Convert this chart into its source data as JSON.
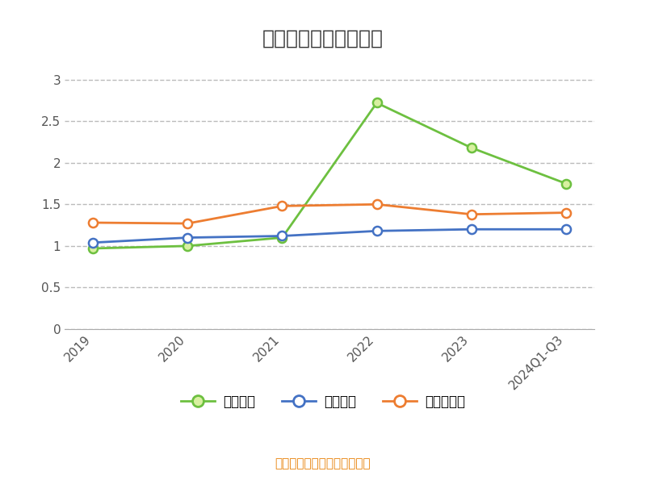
{
  "title": "历年速动比率变化情况",
  "footer": "制图数据来自恒生聚源数据库",
  "x_labels": [
    "2019",
    "2020",
    "2021",
    "2022",
    "2023",
    "2024Q1-Q3"
  ],
  "series": [
    {
      "name": "速动比率",
      "values": [
        0.97,
        1.0,
        1.1,
        2.72,
        2.18,
        1.75
      ],
      "color": "#6DC040",
      "marker": "o",
      "marker_facecolor": "#D8F0A0",
      "marker_edgecolor": "#6DC040",
      "linewidth": 2.0
    },
    {
      "name": "行业均值",
      "values": [
        1.04,
        1.1,
        1.12,
        1.18,
        1.2,
        1.2
      ],
      "color": "#4472C4",
      "marker": "o",
      "marker_facecolor": "#FFFFFF",
      "marker_edgecolor": "#4472C4",
      "linewidth": 2.0
    },
    {
      "name": "行业中位数",
      "values": [
        1.28,
        1.27,
        1.48,
        1.5,
        1.38,
        1.4
      ],
      "color": "#ED7D31",
      "marker": "o",
      "marker_facecolor": "#FFFFFF",
      "marker_edgecolor": "#ED7D31",
      "linewidth": 2.0
    }
  ],
  "ylim": [
    0,
    3.2
  ],
  "yticks": [
    0,
    0.5,
    1,
    1.5,
    2,
    2.5,
    3
  ],
  "background_color": "#FFFFFF",
  "grid_color": "#BBBBBB",
  "title_color": "#333333",
  "tick_color": "#555555",
  "footer_color": "#E8820A",
  "title_fontsize": 18,
  "tick_fontsize": 11,
  "legend_fontsize": 12,
  "footer_fontsize": 11
}
